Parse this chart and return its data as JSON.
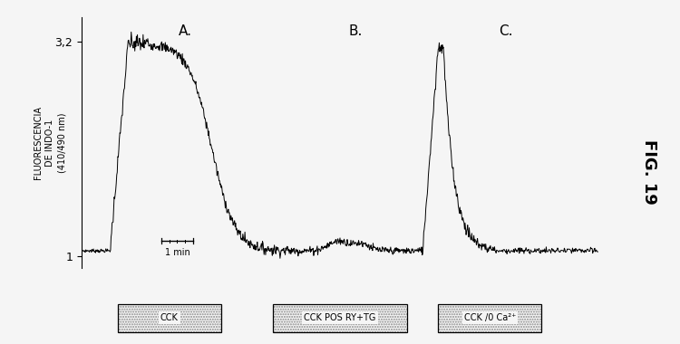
{
  "title": "FIG. 19",
  "ylabel_line1": "FLUORESCENCIA",
  "ylabel_line2": "DE INDO-1",
  "ylabel_line3": "(410/490 nm)",
  "ytick_vals": [
    1.0,
    3.2
  ],
  "ytick_labels": [
    "1",
    "3,2"
  ],
  "ylim": [
    0.88,
    3.45
  ],
  "xlim": [
    0,
    1000
  ],
  "scale_bar_label": "1 min",
  "label_A": "A.",
  "label_B": "B.",
  "label_C": "C.",
  "box_labels": [
    "CCK",
    "CCK POS RY+TG",
    "CCK /0 Ca²⁺"
  ],
  "line_color": "#000000",
  "background_color": "#f5f5f5",
  "noise_amplitude": 0.015,
  "baseline": 1.06,
  "peak_A": 3.18,
  "peak_C": 3.15,
  "sA_start": 55,
  "sA_rise_end": 90,
  "sA_plateau_end": 130,
  "sA_decay_end": 400,
  "sB_start": 400,
  "sB_end": 660,
  "sC_start": 660,
  "sC_rise_end": 690,
  "sC_peak_end": 700,
  "sC_decay_end": 800,
  "sC_end": 1000,
  "total_points": 1000
}
